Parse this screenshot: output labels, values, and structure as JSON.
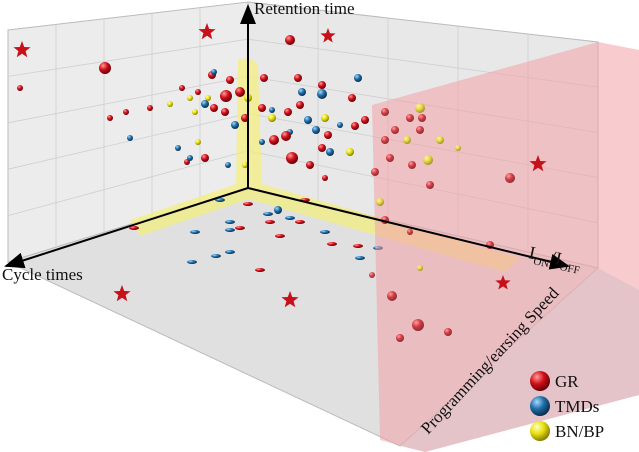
{
  "axes": {
    "retention": "Retention time",
    "cycle": "Cycle times",
    "ion_main": "I",
    "ion_sub": "ON",
    "ioff_main": "I",
    "ioff_sub": "OFF",
    "speed": "Programming/earsing Speed"
  },
  "legend": [
    {
      "label": "GR",
      "color": "#d0101a"
    },
    {
      "label": "TMDs",
      "color": "#1f6fa8"
    },
    {
      "label": "BN/BP",
      "color": "#e8e010"
    }
  ],
  "colors": {
    "highlight": "#f5f07a",
    "slab": "#f3a0a8",
    "star": "#c8101a"
  }
}
